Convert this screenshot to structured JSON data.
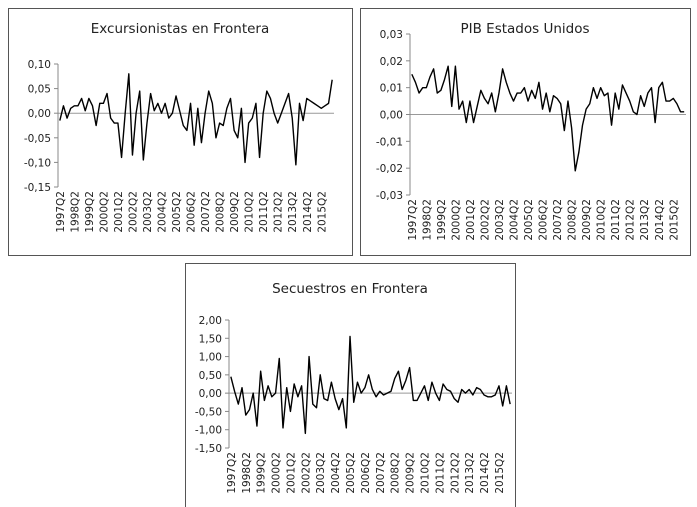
{
  "chart_data": [
    {
      "type": "line",
      "title": "Excursionistas en Frontera",
      "color": "#000000",
      "categories": [
        "1997Q2",
        null,
        null,
        null,
        "1998Q2",
        null,
        null,
        null,
        "1999Q2",
        null,
        null,
        null,
        "2000Q2",
        null,
        null,
        null,
        "2001Q2",
        null,
        null,
        null,
        "2002Q2",
        null,
        null,
        null,
        "2003Q2",
        null,
        null,
        null,
        "2004Q2",
        null,
        null,
        null,
        "2005Q2",
        null,
        null,
        null,
        "2006Q2",
        null,
        null,
        null,
        "2007Q2",
        null,
        null,
        null,
        "2008Q2",
        null,
        null,
        null,
        "2009Q2",
        null,
        null,
        null,
        "2010Q2",
        null,
        null,
        null,
        "2011Q2",
        null,
        null,
        null,
        "2012Q2",
        null,
        null,
        null,
        "2013Q2",
        null,
        null,
        null,
        "2014Q2",
        null,
        null,
        null,
        "2015Q2",
        null,
        null,
        null
      ],
      "values": [
        -0.015,
        0.015,
        -0.01,
        0.01,
        0.015,
        0.015,
        0.03,
        0.005,
        0.03,
        0.015,
        -0.025,
        0.02,
        0.02,
        0.04,
        -0.01,
        -0.02,
        -0.02,
        -0.09,
        0.0,
        0.08,
        -0.085,
        0.0,
        0.045,
        -0.095,
        -0.02,
        0.04,
        0.005,
        0.02,
        0.0,
        0.02,
        -0.01,
        0.0,
        0.035,
        0.005,
        -0.025,
        -0.035,
        0.02,
        -0.065,
        0.01,
        -0.06,
        0.0,
        0.045,
        0.02,
        -0.05,
        -0.02,
        -0.025,
        0.01,
        0.03,
        -0.035,
        -0.05,
        0.01,
        -0.1,
        -0.02,
        -0.01,
        0.02,
        -0.09,
        0.0,
        0.045,
        0.03,
        0.0,
        -0.02,
        0.0,
        0.02,
        0.04,
        -0.01,
        -0.105,
        0.02,
        -0.015,
        0.03,
        0.025,
        0.02,
        0.015,
        0.01,
        0.015,
        0.02,
        0.068
      ],
      "ylim": [
        -0.15,
        0.1
      ],
      "yticks": [
        {
          "value": 0.1,
          "label": "0,10"
        },
        {
          "value": 0.05,
          "label": "0,05"
        },
        {
          "value": 0,
          "label": "0,00"
        },
        {
          "value": -0.05,
          "label": "-0,05"
        },
        {
          "value": -0.1,
          "label": "-0,10"
        },
        {
          "value": -0.15,
          "label": "-0,15"
        }
      ]
    },
    {
      "type": "line",
      "title": "PIB Estados Unidos",
      "color": "#000000",
      "categories": [
        "1997Q2",
        null,
        null,
        null,
        "1998Q2",
        null,
        null,
        null,
        "1999Q2",
        null,
        null,
        null,
        "2000Q2",
        null,
        null,
        null,
        "2001Q2",
        null,
        null,
        null,
        "2002Q2",
        null,
        null,
        null,
        "2003Q2",
        null,
        null,
        null,
        "2004Q2",
        null,
        null,
        null,
        "2005Q2",
        null,
        null,
        null,
        "2006Q2",
        null,
        null,
        null,
        "2007Q2",
        null,
        null,
        null,
        "2008Q2",
        null,
        null,
        null,
        "2009Q2",
        null,
        null,
        null,
        "2010Q2",
        null,
        null,
        null,
        "2011Q2",
        null,
        null,
        null,
        "2012Q2",
        null,
        null,
        null,
        "2013Q2",
        null,
        null,
        null,
        "2014Q2",
        null,
        null,
        null,
        "2015Q2",
        null,
        null,
        null
      ],
      "values": [
        0.015,
        0.012,
        0.008,
        0.01,
        0.01,
        0.014,
        0.017,
        0.008,
        0.009,
        0.013,
        0.018,
        0.003,
        0.018,
        0.002,
        0.005,
        -0.003,
        0.005,
        -0.003,
        0.003,
        0.009,
        0.006,
        0.004,
        0.008,
        0.001,
        0.008,
        0.017,
        0.012,
        0.008,
        0.005,
        0.008,
        0.008,
        0.01,
        0.005,
        0.009,
        0.006,
        0.012,
        0.002,
        0.008,
        0.001,
        0.007,
        0.006,
        0.004,
        -0.006,
        0.005,
        -0.005,
        -0.021,
        -0.014,
        -0.004,
        0.002,
        0.004,
        0.01,
        0.006,
        0.01,
        0.007,
        0.008,
        -0.004,
        0.008,
        0.002,
        0.011,
        0.008,
        0.005,
        0.001,
        0.0,
        0.007,
        0.003,
        0.008,
        0.01,
        -0.003,
        0.01,
        0.012,
        0.005,
        0.005,
        0.006,
        0.004,
        0.001,
        0.001
      ],
      "ylim": [
        -0.03,
        0.03
      ],
      "yticks": [
        {
          "value": 0.03,
          "label": "0,03"
        },
        {
          "value": 0.02,
          "label": "0,02"
        },
        {
          "value": 0.01,
          "label": "0,01"
        },
        {
          "value": 0,
          "label": "0,00"
        },
        {
          "value": -0.01,
          "label": "-0,01"
        },
        {
          "value": -0.02,
          "label": "-0,02"
        },
        {
          "value": -0.03,
          "label": "-0,03"
        }
      ]
    },
    {
      "type": "line",
      "title": "Secuestros en Frontera",
      "color": "#000000",
      "categories": [
        "1997Q2",
        null,
        null,
        null,
        "1998Q2",
        null,
        null,
        null,
        "1999Q2",
        null,
        null,
        null,
        "2000Q2",
        null,
        null,
        null,
        "2001Q2",
        null,
        null,
        null,
        "2002Q2",
        null,
        null,
        null,
        "2003Q2",
        null,
        null,
        null,
        "2004Q2",
        null,
        null,
        null,
        "2005Q2",
        null,
        null,
        null,
        "2006Q2",
        null,
        null,
        null,
        "2007Q2",
        null,
        null,
        null,
        "2008Q2",
        null,
        null,
        null,
        "2009Q2",
        null,
        null,
        null,
        "2010Q2",
        null,
        null,
        null,
        "2011Q2",
        null,
        null,
        null,
        "2012Q2",
        null,
        null,
        null,
        "2013Q2",
        null,
        null,
        null,
        "2014Q2",
        null,
        null,
        null,
        "2015Q2",
        null,
        null,
        null
      ],
      "values": [
        0.45,
        0.05,
        -0.3,
        0.15,
        -0.6,
        -0.45,
        0.0,
        -0.9,
        0.6,
        -0.2,
        0.2,
        -0.1,
        0.0,
        0.95,
        -0.95,
        0.15,
        -0.5,
        0.25,
        -0.1,
        0.2,
        -1.1,
        1.0,
        -0.3,
        -0.4,
        0.5,
        -0.15,
        -0.2,
        0.3,
        -0.15,
        -0.45,
        -0.15,
        -0.95,
        1.55,
        -0.25,
        0.3,
        0.0,
        0.15,
        0.5,
        0.1,
        -0.1,
        0.05,
        -0.05,
        0.0,
        0.05,
        0.4,
        0.6,
        0.1,
        0.35,
        0.7,
        -0.2,
        -0.2,
        0.0,
        0.2,
        -0.2,
        0.3,
        0.0,
        -0.2,
        0.25,
        0.1,
        0.05,
        -0.15,
        -0.25,
        0.1,
        0.0,
        0.1,
        -0.05,
        0.15,
        0.1,
        -0.05,
        -0.1,
        -0.1,
        -0.05,
        0.2,
        -0.35,
        0.2,
        -0.3
      ],
      "ylim": [
        -1.5,
        2.0
      ],
      "yticks": [
        {
          "value": 2.0,
          "label": "2,00"
        },
        {
          "value": 1.5,
          "label": "1,50"
        },
        {
          "value": 1.0,
          "label": "1,00"
        },
        {
          "value": 0.5,
          "label": "0,50"
        },
        {
          "value": 0,
          "label": "0,00"
        },
        {
          "value": -0.5,
          "label": "-0,50"
        },
        {
          "value": -1.0,
          "label": "-1,00"
        },
        {
          "value": -1.5,
          "label": "-1,50"
        }
      ]
    }
  ]
}
